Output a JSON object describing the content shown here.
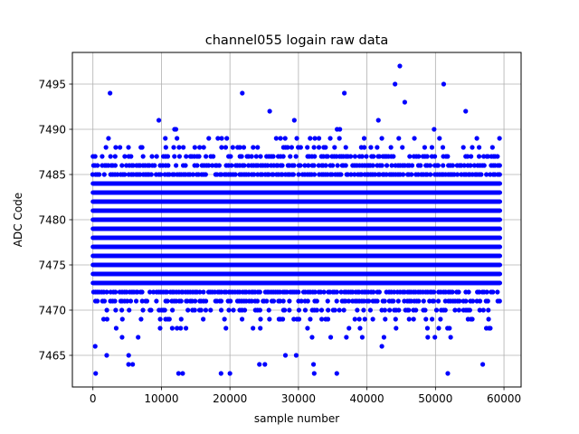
{
  "chart_data": {
    "type": "scatter",
    "title": "channel055 logain raw data",
    "xlabel": "sample number",
    "ylabel": "ADC Code",
    "xlim": [
      -3000,
      62500
    ],
    "ylim": [
      7461.5,
      7498.5
    ],
    "xticks": [
      0,
      10000,
      20000,
      30000,
      40000,
      50000,
      60000
    ],
    "yticks": [
      7465,
      7470,
      7475,
      7480,
      7485,
      7490,
      7495
    ],
    "grid": true,
    "marker_color": "#0000ff",
    "x_range": [
      0,
      59400
    ],
    "series": [
      {
        "color": "#0000ff",
        "levels": [
          {
            "y": 7463,
            "density": 0.003
          },
          {
            "y": 7464,
            "density": 0.004
          },
          {
            "y": 7465,
            "density": 0.012
          },
          {
            "y": 7466,
            "density": 0.02
          },
          {
            "y": 7467,
            "density": 0.05
          },
          {
            "y": 7468,
            "density": 0.1
          },
          {
            "y": 7469,
            "density": 0.22
          },
          {
            "y": 7470,
            "density": 0.4
          },
          {
            "y": 7471,
            "density": 0.65
          },
          {
            "y": 7472,
            "density": 0.85
          },
          {
            "y": 7473,
            "density": 1
          },
          {
            "y": 7474,
            "density": 1
          },
          {
            "y": 7475,
            "density": 1
          },
          {
            "y": 7476,
            "density": 1
          },
          {
            "y": 7477,
            "density": 1
          },
          {
            "y": 7478,
            "density": 1
          },
          {
            "y": 7479,
            "density": 1
          },
          {
            "y": 7480,
            "density": 1
          },
          {
            "y": 7481,
            "density": 1
          },
          {
            "y": 7482,
            "density": 1
          },
          {
            "y": 7483,
            "density": 1
          },
          {
            "y": 7484,
            "density": 1
          },
          {
            "y": 7485,
            "density": 0.85
          },
          {
            "y": 7486,
            "density": 0.7
          },
          {
            "y": 7487,
            "density": 0.45
          },
          {
            "y": 7488,
            "density": 0.25
          },
          {
            "y": 7489,
            "density": 0.12
          },
          {
            "y": 7490,
            "density": 0.05
          },
          {
            "y": 7491,
            "density": 0.025
          },
          {
            "y": 7492,
            "density": 0.012
          },
          {
            "y": 7493,
            "density": 0.005
          }
        ],
        "outliers": [
          {
            "x": 44100,
            "y": 7495
          },
          {
            "x": 51200,
            "y": 7495
          },
          {
            "x": 44800,
            "y": 7497
          },
          {
            "x": 2500,
            "y": 7494
          },
          {
            "x": 21800,
            "y": 7494
          },
          {
            "x": 36700,
            "y": 7494
          },
          {
            "x": 400,
            "y": 7463
          },
          {
            "x": 12500,
            "y": 7463
          },
          {
            "x": 13100,
            "y": 7463
          },
          {
            "x": 18700,
            "y": 7463
          },
          {
            "x": 20000,
            "y": 7463
          },
          {
            "x": 32300,
            "y": 7463
          },
          {
            "x": 35600,
            "y": 7463
          },
          {
            "x": 51800,
            "y": 7463
          },
          {
            "x": 5200,
            "y": 7464
          },
          {
            "x": 5800,
            "y": 7464
          },
          {
            "x": 24300,
            "y": 7464
          },
          {
            "x": 25100,
            "y": 7464
          },
          {
            "x": 32200,
            "y": 7464
          },
          {
            "x": 56900,
            "y": 7464
          }
        ]
      }
    ]
  }
}
